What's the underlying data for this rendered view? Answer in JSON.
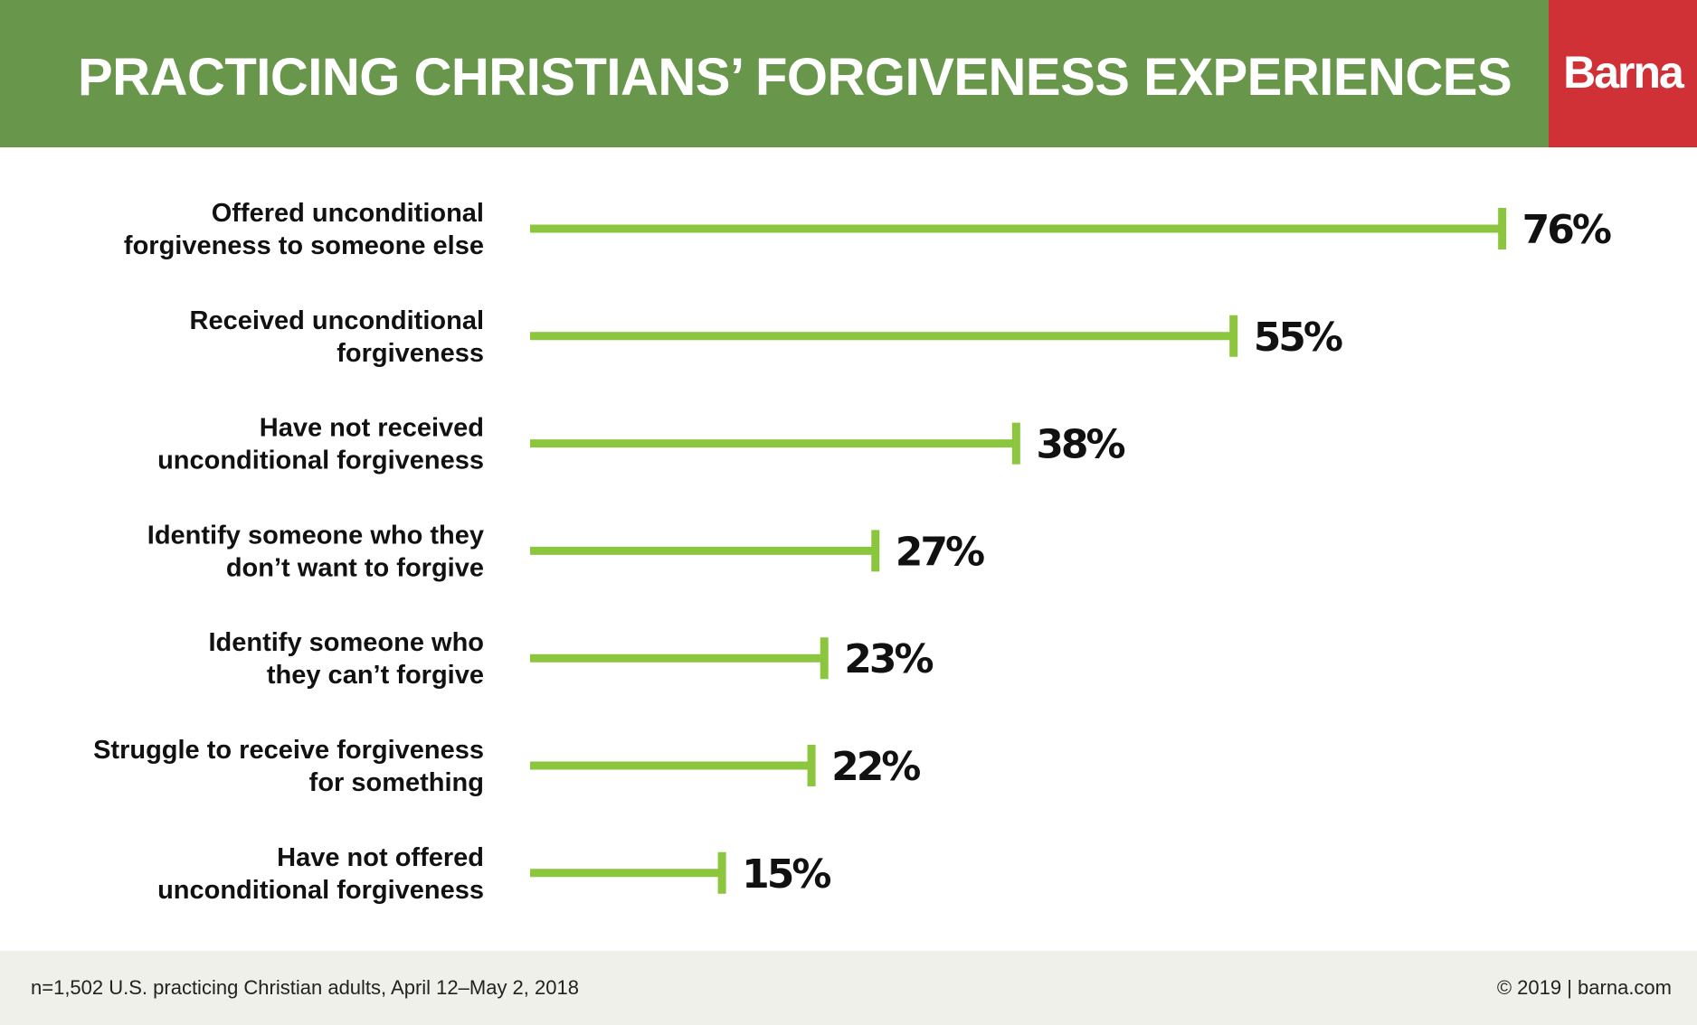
{
  "header": {
    "title": "PRACTICING CHRISTIANS’ FORGIVENESS EXPERIENCES",
    "brand": "Barna"
  },
  "colors": {
    "header_bg": "#68964b",
    "brand_bg": "#d03137",
    "bar": "#8cc63f",
    "footer_bg": "#f0f0eb",
    "text": "#111111"
  },
  "chart_data": {
    "type": "bar",
    "orientation": "horizontal",
    "title": "PRACTICING CHRISTIANS’ FORGIVENESS EXPERIENCES",
    "categories": [
      [
        "Offered unconditional",
        "forgiveness to someone else"
      ],
      [
        "Received unconditional",
        "forgiveness"
      ],
      [
        "Have not received",
        "unconditional forgiveness"
      ],
      [
        "Identify someone who they",
        "don’t want to forgive"
      ],
      [
        "Identify someone who",
        "they can’t forgive"
      ],
      [
        "Struggle to receive forgiveness",
        "for something"
      ],
      [
        "Have not offered",
        "unconditional forgiveness"
      ]
    ],
    "values": [
      76,
      55,
      38,
      27,
      23,
      22,
      15
    ],
    "value_labels": [
      "76%",
      "55%",
      "38%",
      "27%",
      "23%",
      "22%",
      "15%"
    ],
    "unit": "%",
    "xlim": [
      0,
      100
    ],
    "grid": false,
    "legend": "none"
  },
  "footer": {
    "note": "n=1,502 U.S. practicing Christian adults, April 12–May 2, 2018",
    "credit": "© 2019 | barna.com"
  }
}
